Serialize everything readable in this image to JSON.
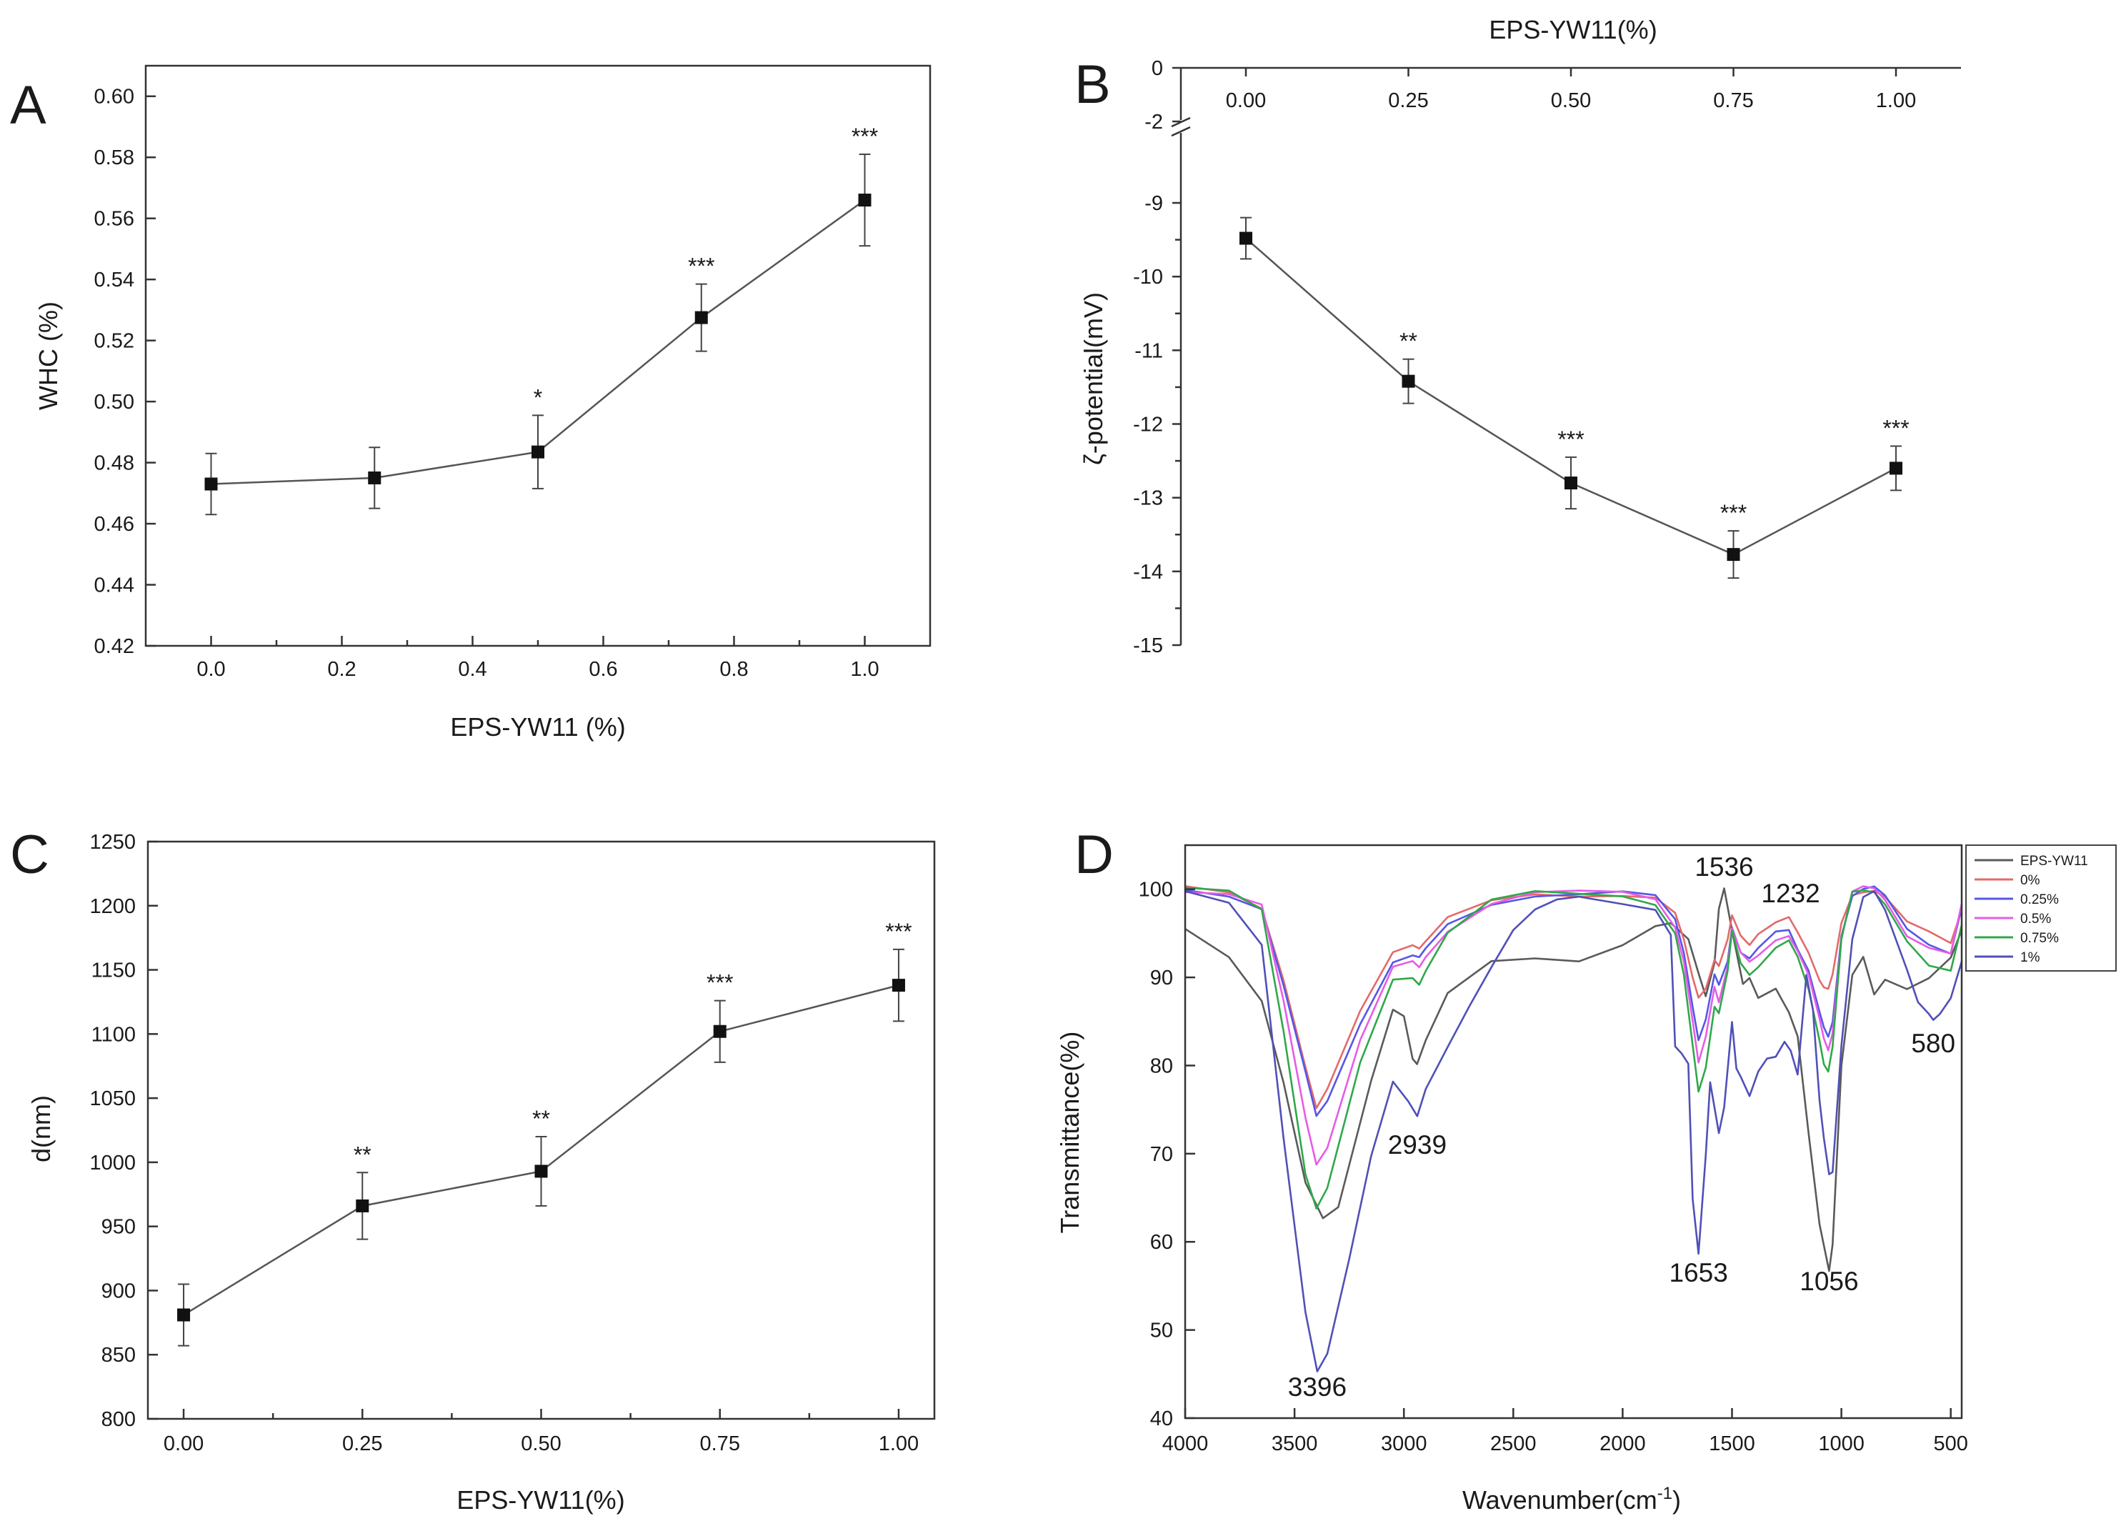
{
  "chart_data": [
    {
      "panel": "A",
      "type": "line",
      "xlabel": "EPS-YW11 (%)",
      "ylabel": "WHC (%)",
      "xlim": [
        -0.1,
        1.1
      ],
      "ylim": [
        0.42,
        0.61
      ],
      "xticks": [
        "0.0",
        "0.2",
        "0.4",
        "0.6",
        "0.8",
        "1.0"
      ],
      "yticks": [
        "0.42",
        "0.44",
        "0.46",
        "0.48",
        "0.50",
        "0.52",
        "0.54",
        "0.56",
        "0.58",
        "0.60"
      ],
      "x": [
        0,
        0.25,
        0.5,
        0.75,
        1.0
      ],
      "y": [
        0.473,
        0.475,
        0.4835,
        0.5275,
        0.566
      ],
      "err": [
        0.01,
        0.01,
        0.012,
        0.011,
        0.015
      ],
      "significance": [
        "",
        "",
        "*",
        "***",
        "***"
      ]
    },
    {
      "panel": "B",
      "type": "line",
      "xlabel": "EPS-YW11(%)",
      "ylabel": "ζ-potential(mV)",
      "xaxis_position": "top",
      "axis_break": [
        -2,
        -9
      ],
      "xlim": [
        -0.1,
        1.1
      ],
      "ylim": [
        -15,
        0
      ],
      "xticks": [
        "0.00",
        "0.25",
        "0.50",
        "0.75",
        "1.00"
      ],
      "yticks_upper": [
        "0",
        "-2"
      ],
      "yticks_lower": [
        "-9",
        "-10",
        "-11",
        "-12",
        "-13",
        "-14",
        "-15"
      ],
      "x": [
        0,
        0.25,
        0.5,
        0.75,
        1.0
      ],
      "y": [
        -9.48,
        -11.42,
        -12.8,
        -13.77,
        -12.6
      ],
      "err": [
        0.28,
        0.3,
        0.35,
        0.32,
        0.3
      ],
      "significance": [
        "",
        "**",
        "***",
        "***",
        "***"
      ]
    },
    {
      "panel": "C",
      "type": "line",
      "xlabel": "EPS-YW11(%)",
      "ylabel": "d(nm)",
      "xlim": [
        -0.05,
        1.05
      ],
      "ylim": [
        800,
        1250
      ],
      "xticks": [
        "0.00",
        "0.25",
        "0.50",
        "0.75",
        "1.00"
      ],
      "yticks": [
        "800",
        "850",
        "900",
        "950",
        "1000",
        "1050",
        "1100",
        "1150",
        "1200",
        "1250"
      ],
      "x": [
        0,
        0.25,
        0.5,
        0.75,
        1.0
      ],
      "y": [
        881,
        966,
        993,
        1102,
        1138
      ],
      "err": [
        24,
        26,
        27,
        24,
        28
      ],
      "significance": [
        "",
        "**",
        "**",
        "***",
        "***"
      ]
    },
    {
      "panel": "D",
      "type": "line",
      "xlabel": "Wavenumber(cm",
      "xlabel_sup": "-1",
      "xlabel_end": ")",
      "ylabel": "Transmittance(%)",
      "xlim": [
        4000,
        450
      ],
      "ylim": [
        40,
        105
      ],
      "xticks": [
        "4000",
        "3500",
        "3000",
        "2500",
        "2000",
        "1500",
        "1000",
        "500"
      ],
      "yticks": [
        "40",
        "50",
        "60",
        "70",
        "80",
        "90",
        "100"
      ],
      "legend_position": "top-right",
      "peak_labels": [
        {
          "wn": 3396,
          "t": 42.5,
          "text": "3396"
        },
        {
          "wn": 2939,
          "t": 70.0,
          "text": "2939"
        },
        {
          "wn": 1653,
          "t": 55.5,
          "text": "1653"
        },
        {
          "wn": 1536,
          "t": 101.5,
          "text": "1536"
        },
        {
          "wn": 1232,
          "t": 98.5,
          "text": "1232"
        },
        {
          "wn": 1056,
          "t": 54.5,
          "text": "1056"
        },
        {
          "wn": 580,
          "t": 81.5,
          "text": "580"
        }
      ],
      "series": [
        {
          "name": "EPS-YW11",
          "color": "#5a5a5a",
          "wn": [
            4000,
            3800,
            3650,
            3550,
            3450,
            3370,
            3300,
            3150,
            3050,
            3000,
            2960,
            2940,
            2900,
            2800,
            2600,
            2400,
            2200,
            2000,
            1850,
            1780,
            1700,
            1650,
            1620,
            1580,
            1560,
            1536,
            1500,
            1450,
            1420,
            1380,
            1300,
            1240,
            1200,
            1150,
            1100,
            1056,
            1040,
            1000,
            950,
            900,
            850,
            800,
            700,
            600,
            500,
            450
          ],
          "t": [
            95.5,
            92,
            87,
            78,
            67,
            63,
            64,
            78,
            86,
            85.5,
            81,
            80.5,
            83,
            88,
            91.5,
            92,
            92,
            94,
            96,
            96,
            94,
            90,
            88,
            92,
            98,
            100,
            95,
            89,
            90,
            88,
            89,
            86,
            83,
            72,
            62,
            57,
            60,
            80,
            90,
            92,
            88,
            90,
            89,
            90,
            92,
            95
          ]
        },
        {
          "name": "0%",
          "color": "#e36a6a",
          "wn": [
            4000,
            3800,
            3650,
            3550,
            3450,
            3400,
            3350,
            3200,
            3050,
            2960,
            2930,
            2900,
            2800,
            2600,
            2400,
            2200,
            2000,
            1850,
            1760,
            1720,
            1680,
            1653,
            1620,
            1580,
            1560,
            1520,
            1500,
            1460,
            1420,
            1380,
            1300,
            1240,
            1200,
            1150,
            1100,
            1080,
            1060,
            1040,
            1000,
            950,
            900,
            850,
            800,
            700,
            600,
            500,
            450
          ],
          "t": [
            100,
            99.5,
            98,
            90,
            80,
            75,
            77,
            86,
            93,
            94,
            93.5,
            94,
            96.5,
            98.5,
            99.5,
            99.5,
            99.5,
            99,
            97,
            94,
            90,
            88,
            89,
            92,
            91,
            94,
            97,
            95,
            94,
            95,
            96,
            96.5,
            95,
            93,
            90,
            89,
            88.5,
            90,
            96,
            99.5,
            100,
            100,
            99,
            96,
            95,
            94,
            98
          ]
        },
        {
          "name": "0.25%",
          "color": "#5656e6",
          "wn": [
            4000,
            3800,
            3650,
            3550,
            3450,
            3400,
            3350,
            3200,
            3050,
            2960,
            2930,
            2900,
            2800,
            2600,
            2400,
            2200,
            2000,
            1850,
            1760,
            1720,
            1680,
            1653,
            1620,
            1580,
            1560,
            1520,
            1500,
            1460,
            1420,
            1380,
            1300,
            1240,
            1200,
            1150,
            1100,
            1080,
            1060,
            1040,
            1000,
            950,
            900,
            850,
            800,
            700,
            600,
            500,
            450
          ],
          "t": [
            100,
            99.5,
            98,
            89,
            79,
            74,
            76,
            85,
            92,
            92.5,
            92,
            93,
            96,
            98.5,
            99.5,
            99.5,
            99.5,
            99,
            96.5,
            93,
            87,
            83,
            85,
            90,
            89,
            92,
            96,
            93,
            92,
            93,
            95,
            95.5,
            93.5,
            91,
            86,
            84,
            83,
            85,
            95,
            99.5,
            100,
            100,
            99,
            95.5,
            94,
            93,
            98
          ]
        },
        {
          "name": "0.5%",
          "color": "#e65ce6",
          "wn": [
            4000,
            3800,
            3650,
            3550,
            3450,
            3400,
            3350,
            3200,
            3050,
            2960,
            2930,
            2900,
            2800,
            2600,
            2400,
            2200,
            2000,
            1850,
            1760,
            1720,
            1680,
            1653,
            1620,
            1580,
            1560,
            1520,
            1500,
            1460,
            1420,
            1380,
            1300,
            1240,
            1200,
            1150,
            1100,
            1080,
            1060,
            1040,
            1000,
            950,
            900,
            850,
            800,
            700,
            600,
            500,
            450
          ],
          "t": [
            100,
            99.5,
            98,
            87,
            74,
            69,
            71,
            83,
            91,
            91.5,
            91,
            92.5,
            95.5,
            98.5,
            99.5,
            99.5,
            99.5,
            99,
            96,
            92,
            85,
            80,
            83,
            89,
            87.5,
            91.5,
            95.5,
            92.5,
            91.5,
            92.5,
            94.5,
            95,
            93,
            90,
            85,
            83,
            82,
            84,
            94.5,
            99.5,
            100,
            100,
            99,
            95,
            93.5,
            92.5,
            98
          ]
        },
        {
          "name": "0.75%",
          "color": "#2fa84a",
          "wn": [
            4000,
            3800,
            3650,
            3550,
            3450,
            3400,
            3350,
            3200,
            3050,
            2960,
            2930,
            2900,
            2800,
            2600,
            2400,
            2200,
            2000,
            1850,
            1760,
            1720,
            1680,
            1653,
            1620,
            1580,
            1560,
            1520,
            1500,
            1460,
            1420,
            1380,
            1300,
            1240,
            1200,
            1150,
            1100,
            1080,
            1060,
            1040,
            1000,
            950,
            900,
            850,
            800,
            700,
            600,
            500,
            450
          ],
          "t": [
            100,
            99.5,
            97.5,
            84,
            68,
            64,
            66,
            80,
            89.5,
            90,
            89.5,
            91,
            95,
            98.5,
            99.5,
            99.5,
            99.5,
            98.5,
            95,
            90,
            82,
            77,
            80,
            87,
            86,
            90.5,
            95,
            91.5,
            90.5,
            91.5,
            93.5,
            94,
            92,
            88.5,
            83,
            80.5,
            79.5,
            82,
            94,
            99.5,
            100,
            100,
            98.5,
            94,
            91,
            90.5,
            96
          ]
        },
        {
          "name": "1%",
          "color": "#5050b8",
          "wn": [
            4000,
            3800,
            3650,
            3550,
            3450,
            3396,
            3350,
            3250,
            3150,
            3050,
            2980,
            2939,
            2900,
            2800,
            2700,
            2600,
            2500,
            2400,
            2300,
            2200,
            2000,
            1850,
            1780,
            1760,
            1730,
            1700,
            1680,
            1653,
            1620,
            1600,
            1560,
            1536,
            1500,
            1480,
            1460,
            1420,
            1380,
            1340,
            1300,
            1260,
            1232,
            1200,
            1160,
            1130,
            1100,
            1080,
            1056,
            1040,
            1000,
            950,
            900,
            850,
            800,
            700,
            650,
            600,
            580,
            550,
            500,
            450
          ],
          "t": [
            99.5,
            98.5,
            94,
            72,
            52,
            45,
            47,
            58,
            70,
            78.5,
            76,
            74,
            77,
            82,
            87,
            91.5,
            95.5,
            97.5,
            98.5,
            99,
            98.5,
            98,
            95,
            82,
            81,
            80,
            65,
            59,
            70,
            78,
            72,
            75,
            85,
            80,
            79,
            76.5,
            79,
            80.5,
            81,
            83,
            82,
            79,
            90,
            86,
            76,
            72,
            68,
            68,
            82,
            94,
            99,
            100,
            98,
            91,
            87,
            85.5,
            85,
            86,
            88,
            92
          ]
        }
      ]
    }
  ]
}
